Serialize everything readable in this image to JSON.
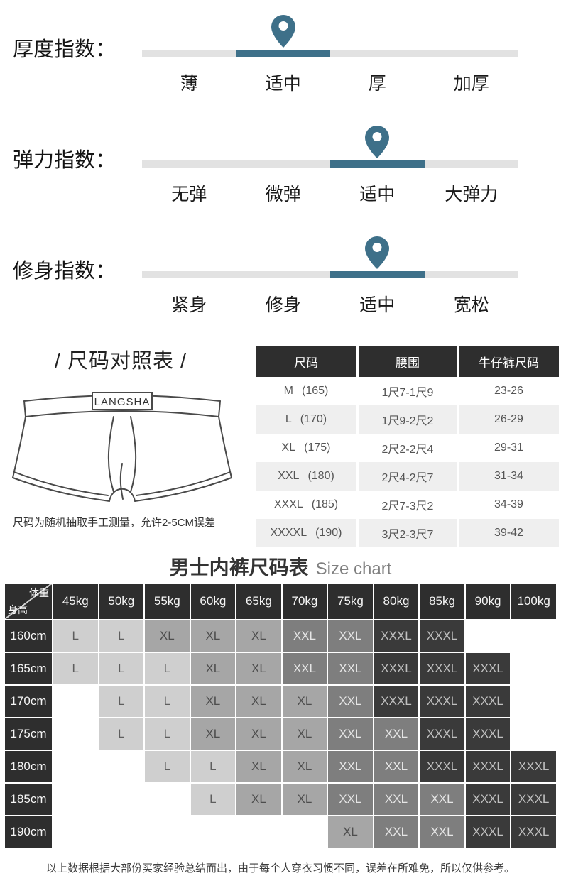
{
  "colors": {
    "accent": "#3e7089",
    "track_gray": "#e2e2e2",
    "header_dark": "#2e2e2e",
    "alt_row": "#efefef",
    "cell_L": "#cfcfcf",
    "cell_XL": "#a6a6a6",
    "cell_XXL": "#7e7e7e",
    "cell_XXXL": "#3a3a3a"
  },
  "indexes": [
    {
      "label": "厚度指数：",
      "options": [
        "薄",
        "适中",
        "厚",
        "加厚"
      ],
      "active": 1,
      "selected": "适中"
    },
    {
      "label": "弹力指数：",
      "options": [
        "无弹",
        "微弹",
        "适中",
        "大弹力"
      ],
      "active": 2,
      "selected": "适中"
    },
    {
      "label": "修身指数：",
      "options": [
        "紧身",
        "修身",
        "适中",
        "宽松"
      ],
      "active": 2,
      "selected": "适中"
    }
  ],
  "size_compare": {
    "title": "/ 尺码对照表 /",
    "brand": "LANGSHA",
    "note": "尺码为随机抽取手工测量，允许2-5CM误差",
    "columns": [
      "尺码",
      "腰围",
      "牛仔裤尺码"
    ],
    "rows": [
      {
        "size": "M",
        "height": "(165)",
        "waist": "1尺7-1尺9",
        "jeans": "23-26"
      },
      {
        "size": "L",
        "height": "(170)",
        "waist": "1尺9-2尺2",
        "jeans": "26-29"
      },
      {
        "size": "XL",
        "height": "(175)",
        "waist": "2尺2-2尺4",
        "jeans": "29-31"
      },
      {
        "size": "XXL",
        "height": "(180)",
        "waist": "2尺4-2尺7",
        "jeans": "31-34"
      },
      {
        "size": "XXXL",
        "height": "(185)",
        "waist": "2尺7-3尺2",
        "jeans": "34-39"
      },
      {
        "size": "XXXXL",
        "height": "(190)",
        "waist": "3尺2-3尺7",
        "jeans": "39-42"
      }
    ]
  },
  "size_chart": {
    "title": "男士内裤尺码表",
    "subtitle": "Size chart",
    "corner_top": "体重",
    "corner_bottom": "身高",
    "weights": [
      "45kg",
      "50kg",
      "55kg",
      "60kg",
      "65kg",
      "70kg",
      "75kg",
      "80kg",
      "85kg",
      "90kg",
      "100kg"
    ],
    "heights": [
      "160cm",
      "165cm",
      "170cm",
      "175cm",
      "180cm",
      "185cm",
      "190cm"
    ],
    "cells": [
      [
        "L",
        "L",
        "XL",
        "XL",
        "XL",
        "XXL",
        "XXL",
        "XXXL",
        "XXXL",
        "",
        ""
      ],
      [
        "L",
        "L",
        "L",
        "XL",
        "XL",
        "XXL",
        "XXL",
        "XXXL",
        "XXXL",
        "XXXL",
        ""
      ],
      [
        "",
        "L",
        "L",
        "XL",
        "XL",
        "XL",
        "XXL",
        "XXXL",
        "XXXL",
        "XXXL",
        ""
      ],
      [
        "",
        "L",
        "L",
        "XL",
        "XL",
        "XL",
        "XXL",
        "XXL",
        "XXXL",
        "XXXL",
        ""
      ],
      [
        "",
        "",
        "L",
        "L",
        "XL",
        "XL",
        "XXL",
        "XXL",
        "XXXL",
        "XXXL",
        "XXXL"
      ],
      [
        "",
        "",
        "",
        "L",
        "XL",
        "XL",
        "XXL",
        "XXL",
        "XXL",
        "XXXL",
        "XXXL"
      ],
      [
        "",
        "",
        "",
        "",
        "",
        "",
        "XL",
        "XXL",
        "XXL",
        "XXXL",
        "XXXL"
      ]
    ],
    "footnote": "以上数据根据大部份买家经验总结而出，由于每个人穿衣习惯不同，误差在所难免，所以仅供参考。"
  }
}
